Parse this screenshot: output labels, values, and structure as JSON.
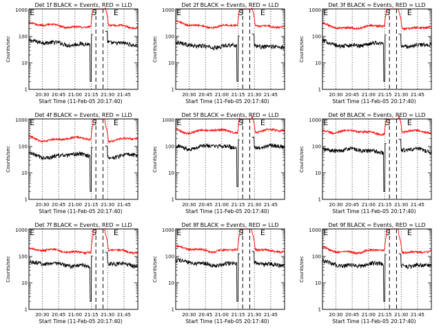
{
  "common": {
    "xlabel": "Start Time (11-Feb-05 20:17:40)",
    "ylabel": "Counts/sec",
    "xticks": [
      "20:30",
      "20:45",
      "21:00",
      "21:15",
      "21:30",
      "21:45"
    ],
    "yticks": [
      "1",
      "10",
      "100",
      "1000"
    ],
    "marker_labels": [
      "E",
      "S",
      "E"
    ],
    "colors": {
      "events": "#000000",
      "lld": "#ff0000",
      "background": "#ffffff"
    }
  },
  "chart_data": [
    {
      "type": "line",
      "title": "Det 1f BLACK = Events, RED = LLD",
      "xlabel": "Start Time (11-Feb-05 20:17:40)",
      "ylabel": "Counts/sec",
      "ylim": [
        1,
        1100
      ],
      "x_range_min": [
        0,
        100
      ],
      "series": [
        {
          "name": "Events",
          "color": "#000000",
          "level": 55,
          "spike_min": 2
        },
        {
          "name": "LLD",
          "color": "#ff0000",
          "level": 250
        }
      ]
    },
    {
      "type": "line",
      "title": "Det 2f BLACK = Events, RED = LLD",
      "xlabel": "Start Time (11-Feb-05 20:17:40)",
      "ylabel": "Counts/sec",
      "ylim": [
        1,
        1100
      ],
      "x_range_min": [
        0,
        100
      ],
      "series": [
        {
          "name": "Events",
          "color": "#000000",
          "level": 45,
          "spike_min": 2
        },
        {
          "name": "LLD",
          "color": "#ff0000",
          "level": 260
        }
      ]
    },
    {
      "type": "line",
      "title": "Det 3f BLACK = Events, RED = LLD",
      "xlabel": "Start Time (11-Feb-05 20:17:40)",
      "ylabel": "Counts/sec",
      "ylim": [
        1,
        1100
      ],
      "x_range_min": [
        0,
        100
      ],
      "series": [
        {
          "name": "Events",
          "color": "#000000",
          "level": 50,
          "spike_min": 2
        },
        {
          "name": "LLD",
          "color": "#ff0000",
          "level": 230
        }
      ]
    },
    {
      "type": "line",
      "title": "Det 4f BLACK = Events, RED = LLD",
      "xlabel": "Start Time (11-Feb-05 20:17:40)",
      "ylabel": "Counts/sec",
      "ylim": [
        1,
        1100
      ],
      "x_range_min": [
        0,
        100
      ],
      "series": [
        {
          "name": "Events",
          "color": "#000000",
          "level": 45,
          "spike_min": 2
        },
        {
          "name": "LLD",
          "color": "#ff0000",
          "level": 190
        }
      ]
    },
    {
      "type": "line",
      "title": "Det 5f BLACK = Events, RED = LLD",
      "xlabel": "Start Time (11-Feb-05 20:17:40)",
      "ylabel": "Counts/sec",
      "ylim": [
        1,
        1100
      ],
      "x_range_min": [
        0,
        100
      ],
      "series": [
        {
          "name": "Events",
          "color": "#000000",
          "level": 95,
          "spike_min": 3
        },
        {
          "name": "LLD",
          "color": "#ff0000",
          "level": 380
        }
      ]
    },
    {
      "type": "line",
      "title": "Det 6f BLACK = Events, RED = LLD",
      "xlabel": "Start Time (11-Feb-05 20:17:40)",
      "ylabel": "Counts/sec",
      "ylim": [
        1,
        1100
      ],
      "x_range_min": [
        0,
        100
      ],
      "series": [
        {
          "name": "Events",
          "color": "#000000",
          "level": 70,
          "spike_min": 2
        },
        {
          "name": "LLD",
          "color": "#ff0000",
          "level": 350
        }
      ]
    },
    {
      "type": "line",
      "title": "Det 7f BLACK = Events, RED = LLD",
      "xlabel": "Start Time (11-Feb-05 20:17:40)",
      "ylabel": "Counts/sec",
      "ylim": [
        1,
        1100
      ],
      "x_range_min": [
        0,
        100
      ],
      "series": [
        {
          "name": "Events",
          "color": "#000000",
          "level": 50,
          "spike_min": 2
        },
        {
          "name": "LLD",
          "color": "#ff0000",
          "level": 160
        }
      ]
    },
    {
      "type": "line",
      "title": "Det 8f BLACK = Events, RED = LLD",
      "xlabel": "Start Time (11-Feb-05 20:17:40)",
      "ylabel": "Counts/sec",
      "ylim": [
        1,
        1100
      ],
      "x_range_min": [
        0,
        100
      ],
      "series": [
        {
          "name": "Events",
          "color": "#000000",
          "level": 55,
          "spike_min": 2
        },
        {
          "name": "LLD",
          "color": "#ff0000",
          "level": 180
        }
      ]
    },
    {
      "type": "line",
      "title": "Det 9f BLACK = Events, RED = LLD",
      "xlabel": "Start Time (11-Feb-05 20:17:40)",
      "ylabel": "Counts/sec",
      "ylim": [
        1,
        1100
      ],
      "x_range_min": [
        0,
        100
      ],
      "series": [
        {
          "name": "Events",
          "color": "#000000",
          "level": 50,
          "spike_min": 2
        },
        {
          "name": "LLD",
          "color": "#ff0000",
          "level": 160
        }
      ]
    }
  ]
}
